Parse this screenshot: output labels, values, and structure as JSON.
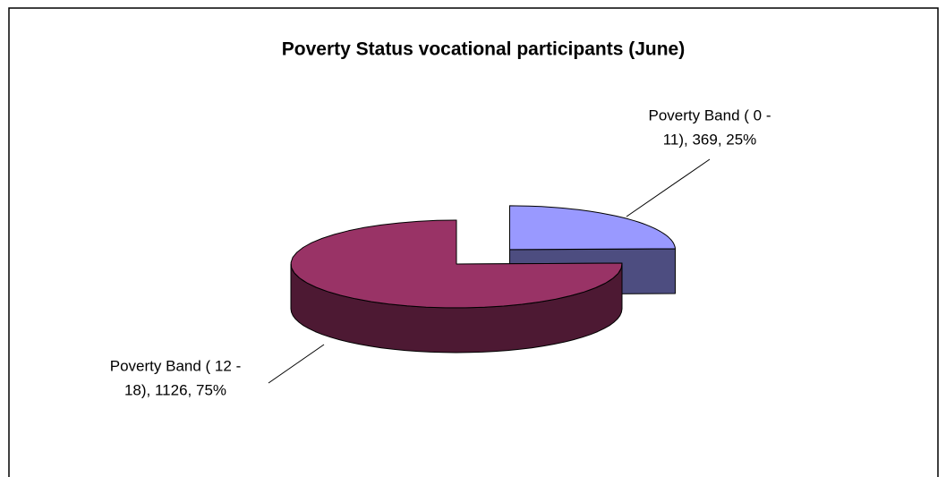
{
  "chart_data": {
    "type": "pie3d",
    "title": "Poverty Status vocational participants (June)",
    "values": [
      369,
      1126
    ],
    "value_labels": [
      [
        "Poverty Band ( 0 -",
        "11), 369, 25%"
      ],
      [
        "Poverty Band ( 12 -",
        "18), 1126, 75%"
      ]
    ],
    "colors": [
      "#9999ff",
      "#993366"
    ],
    "side_colors": [
      "#4d4d80",
      "#4d1933"
    ]
  }
}
